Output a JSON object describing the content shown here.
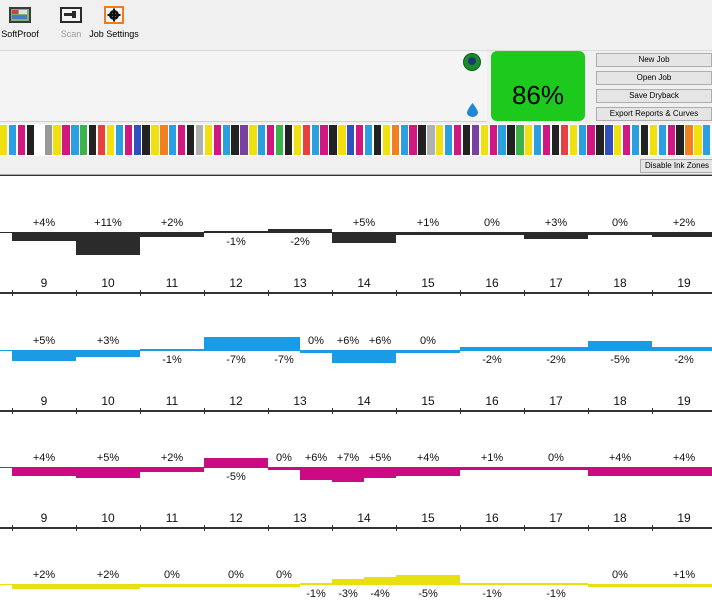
{
  "toolbar": {
    "buttons": [
      {
        "label": "SoftProof",
        "icon": "softproof-icon",
        "enabled": true
      },
      {
        "label": "Scan",
        "icon": "scan-icon",
        "enabled": false
      },
      {
        "label": "Job Settings",
        "icon": "gear-icon",
        "enabled": true
      }
    ]
  },
  "status": {
    "score": "86%",
    "score_color": "#1ec91e"
  },
  "actions": {
    "new_job": "New Job",
    "open_job": "Open Job",
    "save_dryback": "Save Dryback",
    "export": "Export Reports & Curves"
  },
  "ink_strip": {
    "colors": [
      "#f0e010",
      "#2aa0e0",
      "#d01880",
      "#222222",
      "#ffffff",
      "#999999",
      "#3bb24a",
      "#e84040",
      "#3050c0",
      "#f08020",
      "#b0b0b0",
      "#7a3fa0"
    ]
  },
  "disable_ink_zones": "Disable Ink Zones",
  "zones": [
    "9",
    "10",
    "11",
    "12",
    "13",
    "14",
    "15",
    "16",
    "17",
    "18",
    "19"
  ],
  "channels": [
    {
      "name": "black",
      "color": "#2b2b2b",
      "segments": [
        {
          "zone": "9",
          "value": "+4%"
        },
        {
          "zone": "10",
          "value": "+11%"
        },
        {
          "zone": "11",
          "value": "+2%"
        },
        {
          "zone": "12",
          "value": "-1%"
        },
        {
          "zone": "13",
          "value": "-2%"
        },
        {
          "zone": "14",
          "value": "+5%"
        },
        {
          "zone": "15",
          "value": "+1%"
        },
        {
          "zone": "16",
          "value": "0%"
        },
        {
          "zone": "17",
          "value": "+3%"
        },
        {
          "zone": "18",
          "value": "0%"
        },
        {
          "zone": "19",
          "value": "+2%"
        }
      ]
    },
    {
      "name": "cyan",
      "color": "#1a9be6",
      "segments": [
        {
          "zone": "9",
          "value": "+5%"
        },
        {
          "zone": "10",
          "value": "+3%"
        },
        {
          "zone": "11",
          "value": "-1%"
        },
        {
          "zone": "12",
          "value": "-7%"
        },
        {
          "zone": "13a",
          "value": "-7%"
        },
        {
          "zone": "13b",
          "value": "0%"
        },
        {
          "zone": "14a",
          "value": "+6%"
        },
        {
          "zone": "14b",
          "value": "+6%"
        },
        {
          "zone": "15",
          "value": "0%"
        },
        {
          "zone": "16",
          "value": "-2%"
        },
        {
          "zone": "17",
          "value": "-2%"
        },
        {
          "zone": "18",
          "value": "-5%"
        },
        {
          "zone": "19",
          "value": "-2%"
        }
      ]
    },
    {
      "name": "magenta",
      "color": "#cc0a84",
      "segments": [
        {
          "zone": "9",
          "value": "+4%"
        },
        {
          "zone": "10",
          "value": "+5%"
        },
        {
          "zone": "11",
          "value": "+2%"
        },
        {
          "zone": "12",
          "value": "-5%"
        },
        {
          "zone": "13a",
          "value": "0%"
        },
        {
          "zone": "13b",
          "value": "+6%"
        },
        {
          "zone": "14a",
          "value": "+7%"
        },
        {
          "zone": "14b",
          "value": "+5%"
        },
        {
          "zone": "15",
          "value": "+4%"
        },
        {
          "zone": "16",
          "value": "+1%"
        },
        {
          "zone": "17",
          "value": "0%"
        },
        {
          "zone": "18",
          "value": "+4%"
        },
        {
          "zone": "19",
          "value": "+4%"
        }
      ]
    },
    {
      "name": "yellow",
      "color": "#e8e010",
      "segments": [
        {
          "zone": "9",
          "value": "+2%"
        },
        {
          "zone": "10",
          "value": "+2%"
        },
        {
          "zone": "11",
          "value": "0%"
        },
        {
          "zone": "12",
          "value": "0%"
        },
        {
          "zone": "13a",
          "value": "0%"
        },
        {
          "zone": "13b",
          "value": "-1%"
        },
        {
          "zone": "14a",
          "value": "-3%"
        },
        {
          "zone": "14b",
          "value": "-4%"
        },
        {
          "zone": "15",
          "value": "-5%"
        },
        {
          "zone": "16",
          "value": "-1%"
        },
        {
          "zone": "17",
          "value": "-1%"
        },
        {
          "zone": "18",
          "value": "0%"
        },
        {
          "zone": "19",
          "value": "+1%"
        }
      ]
    }
  ]
}
